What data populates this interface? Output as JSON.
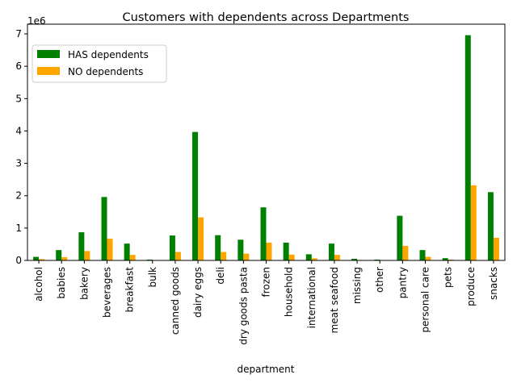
{
  "chart_data": {
    "type": "bar",
    "title": "Customers with dependents across Departments",
    "xlabel": "department",
    "ylabel": "",
    "y_scale_label": "1e6",
    "ylim": [
      0,
      7300000
    ],
    "yticks": [
      0,
      1000000,
      2000000,
      3000000,
      4000000,
      5000000,
      6000000,
      7000000
    ],
    "ytick_labels": [
      "0",
      "1",
      "2",
      "3",
      "4",
      "5",
      "6",
      "7"
    ],
    "grid": false,
    "legend_position": "top-left",
    "categories": [
      "alcohol",
      "babies",
      "bakery",
      "beverages",
      "breakfast",
      "bulk",
      "canned goods",
      "dairy eggs",
      "deli",
      "dry goods pasta",
      "frozen",
      "household",
      "international",
      "meat seafood",
      "missing",
      "other",
      "pantry",
      "personal care",
      "pets",
      "produce",
      "snacks"
    ],
    "series": [
      {
        "name": "HAS dependents",
        "color": "#008000",
        "values": [
          110000,
          320000,
          870000,
          1960000,
          520000,
          25000,
          770000,
          3970000,
          780000,
          640000,
          1640000,
          550000,
          190000,
          520000,
          50000,
          25000,
          1380000,
          320000,
          70000,
          6960000,
          2110000
        ]
      },
      {
        "name": "NO dependents",
        "color": "#FFA500",
        "values": [
          40000,
          100000,
          290000,
          670000,
          170000,
          10000,
          260000,
          1330000,
          260000,
          210000,
          550000,
          180000,
          65000,
          170000,
          15000,
          10000,
          450000,
          110000,
          25000,
          2320000,
          700000
        ]
      }
    ]
  }
}
